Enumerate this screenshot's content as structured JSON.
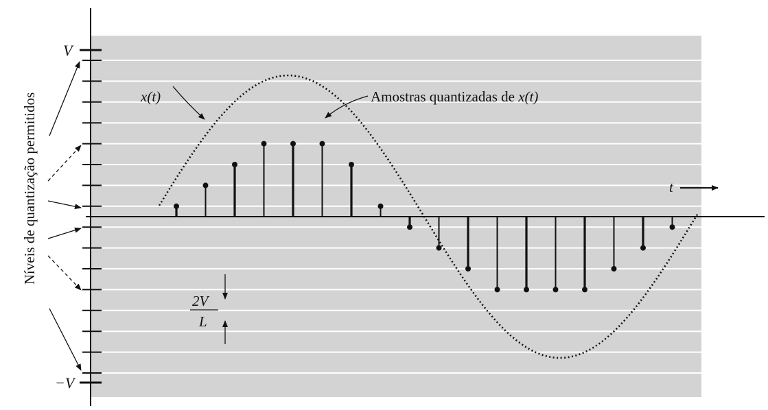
{
  "figure": {
    "vertical_title": "Níveis de quantização permitidos",
    "v_top_label": "V",
    "v_bottom_label": "−V",
    "signal_label": "x(t)",
    "samples_label_prefix": "Amostras quantizadas de ",
    "samples_label_symbol": "x(t)",
    "time_label": "t",
    "step_numerator": "2V",
    "step_denominator": "L",
    "colors": {
      "panel": "#d3d3d3",
      "level_lines": "#ffffff",
      "ink": "#111111"
    },
    "sample_levels": [
      1,
      3,
      5,
      7,
      7,
      7,
      5,
      1,
      -1,
      -3,
      -5,
      -7,
      -7,
      -7,
      -7,
      -5,
      -3,
      -1
    ],
    "quantized_level_count": 14
  }
}
